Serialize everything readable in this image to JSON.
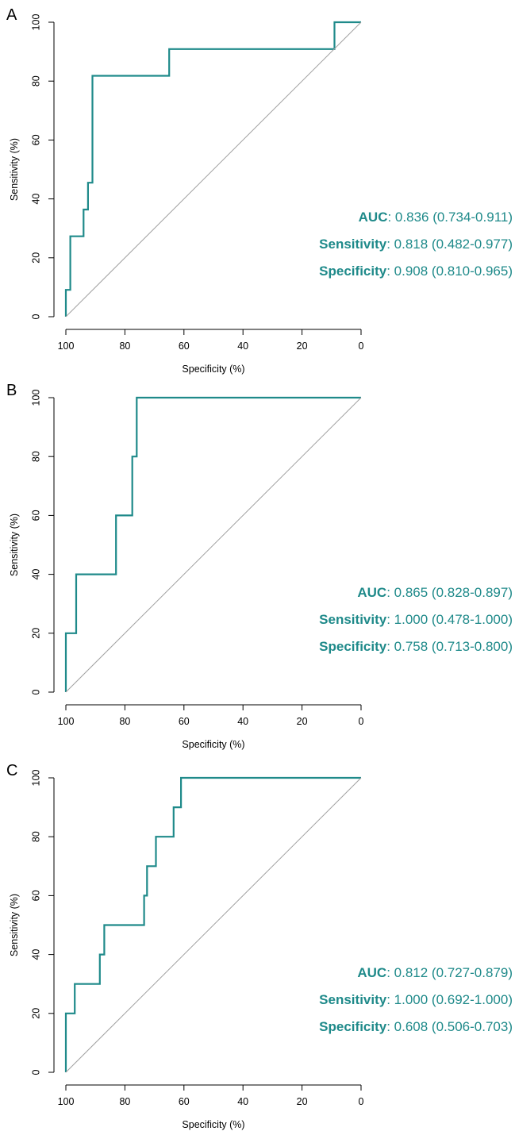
{
  "colors": {
    "curve": "#1f8a8a",
    "diagonal": "#a0a0a0",
    "axis": "#000000",
    "stats": "#1f8a8a"
  },
  "chart_data": [
    {
      "type": "line",
      "panel": "A",
      "xlabel": "Specificity (%)",
      "ylabel": "Sensitivity (%)",
      "xlim": [
        100,
        0
      ],
      "ylim": [
        0,
        100
      ],
      "xticks": [
        "100",
        "80",
        "60",
        "40",
        "20",
        "0"
      ],
      "yticks": [
        "0",
        "20",
        "40",
        "60",
        "80",
        "100"
      ],
      "series": [
        {
          "name": "ROC",
          "x": [
            100,
            100,
            98.5,
            98.5,
            94,
            94,
            92.5,
            92.5,
            91,
            91,
            65,
            65,
            9,
            9,
            0
          ],
          "y": [
            0,
            9.1,
            9.1,
            27.3,
            27.3,
            36.4,
            36.4,
            45.5,
            45.5,
            81.8,
            81.8,
            90.9,
            90.9,
            100,
            100
          ]
        },
        {
          "name": "Reference",
          "x": [
            100,
            0
          ],
          "y": [
            0,
            100
          ]
        }
      ],
      "stats": [
        {
          "label": "AUC",
          "value": ": 0.836 (0.734-0.911)"
        },
        {
          "label": "Sensitivity",
          "value": ": 0.818 (0.482-0.977)"
        },
        {
          "label": "Specificity",
          "value": ": 0.908 (0.810-0.965)"
        }
      ]
    },
    {
      "type": "line",
      "panel": "B",
      "xlabel": "Specificity (%)",
      "ylabel": "Sensitivity (%)",
      "xlim": [
        100,
        0
      ],
      "ylim": [
        0,
        100
      ],
      "xticks": [
        "100",
        "80",
        "60",
        "40",
        "20",
        "0"
      ],
      "yticks": [
        "0",
        "20",
        "40",
        "60",
        "80",
        "100"
      ],
      "series": [
        {
          "name": "ROC",
          "x": [
            100,
            100,
            96.5,
            96.5,
            83,
            83,
            77.5,
            77.5,
            76,
            76,
            0
          ],
          "y": [
            0,
            20,
            20,
            40,
            40,
            60,
            60,
            80,
            80,
            100,
            100
          ]
        },
        {
          "name": "Reference",
          "x": [
            100,
            0
          ],
          "y": [
            0,
            100
          ]
        }
      ],
      "stats": [
        {
          "label": "AUC",
          "value": ": 0.865 (0.828-0.897)"
        },
        {
          "label": "Sensitivity",
          "value": ": 1.000 (0.478-1.000)"
        },
        {
          "label": "Specificity",
          "value": ": 0.758 (0.713-0.800)"
        }
      ]
    },
    {
      "type": "line",
      "panel": "C",
      "xlabel": "Specificity (%)",
      "ylabel": "Sensitivity (%)",
      "xlim": [
        100,
        0
      ],
      "ylim": [
        0,
        100
      ],
      "xticks": [
        "100",
        "80",
        "60",
        "40",
        "20",
        "0"
      ],
      "yticks": [
        "0",
        "20",
        "40",
        "60",
        "80",
        "100"
      ],
      "series": [
        {
          "name": "ROC",
          "x": [
            100,
            100,
            97,
            97,
            88.5,
            88.5,
            87,
            87,
            73.5,
            73.5,
            72.5,
            72.5,
            69.5,
            69.5,
            63.5,
            63.5,
            61,
            61,
            0
          ],
          "y": [
            0,
            20,
            20,
            30,
            30,
            40,
            40,
            50,
            50,
            60,
            60,
            70,
            70,
            80,
            80,
            90,
            90,
            100,
            100
          ]
        },
        {
          "name": "Reference",
          "x": [
            100,
            0
          ],
          "y": [
            0,
            100
          ]
        }
      ],
      "stats": [
        {
          "label": "AUC",
          "value": ": 0.812 (0.727-0.879)"
        },
        {
          "label": "Sensitivity",
          "value": ": 1.000 (0.692-1.000)"
        },
        {
          "label": "Specificity",
          "value": ": 0.608 (0.506-0.703)"
        }
      ]
    }
  ]
}
